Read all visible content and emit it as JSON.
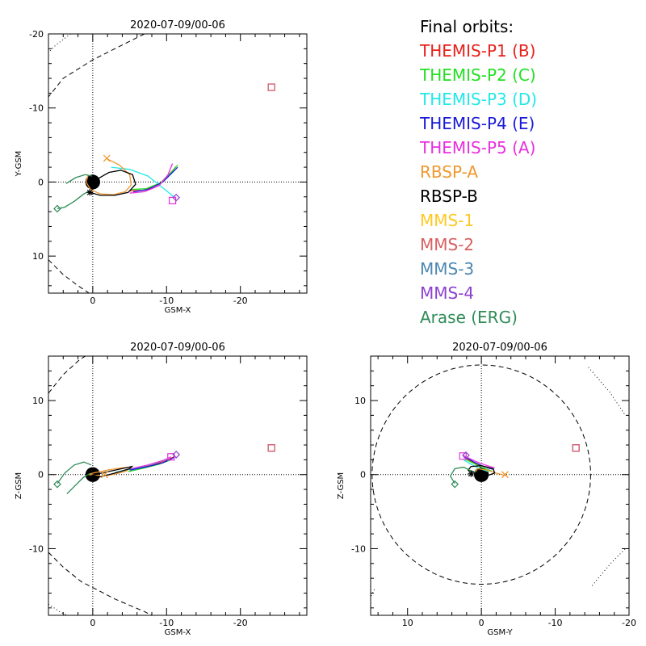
{
  "legend": {
    "title": "Final orbits:",
    "items": [
      {
        "label": "THEMIS-P1 (B)",
        "color": "#e8201a"
      },
      {
        "label": "THEMIS-P2 (C)",
        "color": "#22e022"
      },
      {
        "label": "THEMIS-P3 (D)",
        "color": "#22e8e8"
      },
      {
        "label": "THEMIS-P4 (E)",
        "color": "#1a1ad8"
      },
      {
        "label": "THEMIS-P5 (A)",
        "color": "#e830e0"
      },
      {
        "label": "RBSP-A",
        "color": "#f09830"
      },
      {
        "label": "RBSP-B",
        "color": "#000000"
      },
      {
        "label": "MMS-1",
        "color": "#ffc820"
      },
      {
        "label": "MMS-2",
        "color": "#d86060"
      },
      {
        "label": "MMS-3",
        "color": "#4c88b0"
      },
      {
        "label": "MMS-4",
        "color": "#8c40d0"
      },
      {
        "label": "Arase (ERG)",
        "color": "#2e8b57"
      }
    ]
  },
  "chart_data": [
    {
      "type": "line",
      "title": "2020-07-09/00-06",
      "xlabel": "GSM-X",
      "ylabel": "Y-GSM",
      "xlim": [
        6,
        -29
      ],
      "ylim": [
        15,
        -20
      ],
      "x_ticks": [
        0,
        -10,
        -20
      ],
      "y_ticks": [
        -20,
        -10,
        0,
        10
      ],
      "curves": [
        {
          "kind": "bowshock",
          "style": "dashed",
          "points": [
            [
              -7,
              -20
            ],
            [
              -3,
              -18
            ],
            [
              0,
              -16.5
            ],
            [
              4,
              -14
            ],
            [
              6,
              -11.5
            ],
            [
              6,
              -10.5
            ]
          ]
        },
        {
          "kind": "bowshock",
          "style": "dashed",
          "points": [
            [
              6,
              10.5
            ],
            [
              4,
              12.5
            ],
            [
              2,
              14
            ],
            [
              0.5,
              15
            ]
          ]
        },
        {
          "kind": "magnetopause",
          "style": "dotted",
          "points": [
            [
              3,
              -20
            ],
            [
              5,
              -18.5
            ],
            [
              6,
              -17.5
            ]
          ]
        }
      ],
      "series": [
        {
          "name": "THEMIS-P1 (B)",
          "color": "#e8201a",
          "x": [
            -5,
            -7,
            -9,
            -10.5,
            -11.3
          ],
          "y": [
            1.2,
            1.1,
            0.3,
            -1.2,
            -2.1
          ]
        },
        {
          "name": "THEMIS-P2 (C)",
          "color": "#22e022",
          "x": [
            -5.2,
            -7.2,
            -9.2,
            -10.7,
            -11.5
          ],
          "y": [
            1.0,
            0.9,
            0.1,
            -1.4,
            -2.3
          ]
        },
        {
          "name": "THEMIS-P3 (D)",
          "color": "#22e8e8",
          "x": [
            -2.5,
            -5,
            -7.5,
            -9.5,
            -11
          ],
          "y": [
            -2.0,
            -1.7,
            -0.8,
            0.8,
            2.0
          ]
        },
        {
          "name": "THEMIS-P4 (E)",
          "color": "#1a1ad8",
          "x": [
            -5.5,
            -7.5,
            -9.5,
            -10.8,
            -11.5
          ],
          "y": [
            1.3,
            1.0,
            0.0,
            -1.3,
            -2.0
          ]
        },
        {
          "name": "THEMIS-P5 (A)",
          "color": "#e830e0",
          "x": [
            -5,
            -7,
            -9,
            -10.2,
            -10.8
          ],
          "y": [
            1.5,
            1.3,
            0.5,
            -1.0,
            -2.5
          ]
        },
        {
          "name": "RBSP-A",
          "color": "#f09830",
          "x": [
            -1.8,
            -3.6,
            -5,
            -5.2,
            -4.4,
            -2.8,
            -1,
            0.3,
            0.9,
            0.6
          ],
          "y": [
            -3.2,
            -2.3,
            -1.0,
            0.4,
            1.3,
            1.7,
            1.6,
            1.0,
            0.0,
            -1.0
          ]
        },
        {
          "name": "RBSP-B",
          "color": "#000000",
          "x": [
            0.4,
            -1,
            -3,
            -4.8,
            -5.8,
            -5.4,
            -3.8,
            -2.2,
            -0.6,
            0.4
          ],
          "y": [
            1.4,
            1.8,
            1.8,
            1.4,
            0.3,
            -1.0,
            -1.6,
            -1.3,
            -0.4,
            0.4
          ]
        },
        {
          "name": "Arase (ERG)",
          "color": "#2e8b57",
          "x": [
            4.8,
            3.8,
            2.5,
            1.2,
            0.4
          ],
          "y": [
            3.6,
            3.4,
            2.6,
            1.6,
            1.2
          ]
        },
        {
          "name": "Arase (ERG)",
          "color": "#2e8b57",
          "x": [
            3.6,
            2.3,
            1.0,
            0.1
          ],
          "y": [
            0.2,
            -0.6,
            -1.0,
            -0.8
          ]
        }
      ],
      "markers": [
        {
          "name": "MMS-4",
          "shape": "square",
          "x": -24.2,
          "y": -12.8,
          "color": "#8c40d0"
        },
        {
          "name": "MMS-2",
          "shape": "square",
          "x": -24.2,
          "y": -12.8,
          "color": "#d86060"
        },
        {
          "name": "THEMIS-P5 (A)",
          "shape": "square",
          "x": -10.8,
          "y": 2.5,
          "color": "#e830e0"
        },
        {
          "name": "THEMIS-P4 (E)",
          "shape": "diamond",
          "x": -11.3,
          "y": 2.1,
          "color": "#8c40d0"
        },
        {
          "name": "RBSP-A",
          "shape": "x",
          "x": -1.9,
          "y": -3.2,
          "color": "#f09830"
        },
        {
          "name": "RBSP-B",
          "shape": "asterisk",
          "x": 0.4,
          "y": 1.4,
          "color": "#000000"
        },
        {
          "name": "Arase (ERG)",
          "shape": "diamond",
          "x": 4.8,
          "y": 3.6,
          "color": "#2e8b57"
        }
      ]
    },
    {
      "type": "line",
      "title": "2020-07-09/00-06",
      "xlabel": "GSM-X",
      "ylabel": "Z-GSM",
      "xlim": [
        6,
        -29
      ],
      "ylim": [
        -19,
        16
      ],
      "x_ticks": [
        0,
        -10,
        -20
      ],
      "y_ticks": [
        -10,
        0,
        10
      ],
      "curves": [
        {
          "kind": "bowshock",
          "style": "dashed",
          "points": [
            [
              6,
              11
            ],
            [
              4,
              13.5
            ],
            [
              1.8,
              15.5
            ],
            [
              1,
              16
            ]
          ]
        },
        {
          "kind": "bowshock",
          "style": "dashed",
          "points": [
            [
              6,
              -10.5
            ],
            [
              4,
              -12.5
            ],
            [
              1.5,
              -14.5
            ],
            [
              -0.5,
              -15.5
            ],
            [
              -3,
              -16.8
            ],
            [
              -7,
              -18.5
            ],
            [
              -8,
              -19
            ]
          ]
        },
        {
          "kind": "magnetopause",
          "style": "dotted",
          "points": [
            [
              6,
              -17.5
            ],
            [
              4.5,
              -18.5
            ],
            [
              3.5,
              -19
            ]
          ]
        }
      ],
      "series": [
        {
          "name": "THEMIS-P1 (B)",
          "color": "#e8201a",
          "x": [
            -5,
            -7,
            -9,
            -10.4,
            -11.2
          ],
          "y": [
            0.7,
            1.1,
            1.6,
            2.1,
            2.5
          ]
        },
        {
          "name": "THEMIS-P2 (C)",
          "color": "#22e022",
          "x": [
            -4.8,
            -7,
            -9,
            -10.6
          ],
          "y": [
            0.4,
            0.9,
            1.4,
            2.0
          ]
        },
        {
          "name": "THEMIS-P3 (D)",
          "color": "#22e8e8",
          "x": [
            -3,
            -5.5,
            -8,
            -10.2
          ],
          "y": [
            0.3,
            0.8,
            1.4,
            2.1
          ]
        },
        {
          "name": "THEMIS-P4 (E)",
          "color": "#1a1ad8",
          "x": [
            -5,
            -7.5,
            -9.5,
            -11
          ],
          "y": [
            0.6,
            1.1,
            1.6,
            2.3
          ]
        },
        {
          "name": "THEMIS-P5 (A)",
          "color": "#e830e0",
          "x": [
            -5.2,
            -7.5,
            -9.5,
            -10.6
          ],
          "y": [
            0.8,
            1.3,
            1.9,
            2.4
          ]
        },
        {
          "name": "RBSP-A",
          "color": "#f09830",
          "x": [
            -2,
            -3.2,
            -4.6,
            -5.2,
            -3.8,
            -2,
            0,
            0.6,
            -1
          ],
          "y": [
            -0.1,
            0.1,
            0.5,
            1.0,
            0.9,
            0.6,
            0.2,
            0.0,
            -0.1
          ]
        },
        {
          "name": "RBSP-B",
          "color": "#000000",
          "x": [
            0.6,
            -1,
            -3,
            -5,
            -5.3,
            -3.5,
            -1.2,
            0.4
          ],
          "y": [
            -0.6,
            -0.3,
            0.2,
            0.8,
            1.1,
            0.7,
            0.2,
            -0.2
          ]
        },
        {
          "name": "Arase (ERG)",
          "color": "#2e8b57",
          "x": [
            4.8,
            3.8,
            2.5,
            1.2,
            0.2
          ],
          "y": [
            -1.2,
            0.2,
            1.3,
            1.7,
            1.3
          ]
        },
        {
          "name": "Arase (ERG)",
          "color": "#2e8b57",
          "x": [
            3.5,
            2.5,
            1.3,
            0.3
          ],
          "y": [
            -2.6,
            -1.6,
            -0.4,
            0.2
          ]
        }
      ],
      "markers": [
        {
          "name": "MMS-4",
          "shape": "square",
          "x": -24.2,
          "y": 3.6,
          "color": "#8c40d0"
        },
        {
          "name": "MMS-2",
          "shape": "square",
          "x": -24.2,
          "y": 3.6,
          "color": "#d86060"
        },
        {
          "name": "THEMIS-P5 (A)",
          "shape": "square",
          "x": -10.6,
          "y": 2.4,
          "color": "#e830e0"
        },
        {
          "name": "THEMIS-P4 (E)",
          "shape": "diamond",
          "x": -11.3,
          "y": 2.7,
          "color": "#8c40d0"
        },
        {
          "name": "RBSP-A",
          "shape": "x",
          "x": -1.6,
          "y": 0.0,
          "color": "#f09830"
        },
        {
          "name": "Arase (ERG)",
          "shape": "diamond",
          "x": 4.8,
          "y": -1.3,
          "color": "#2e8b57"
        }
      ]
    },
    {
      "type": "line",
      "title": "2020-07-09/00-06",
      "xlabel": "GSM-Y",
      "ylabel": "Z-GSM",
      "xlim": [
        15,
        -20
      ],
      "ylim": [
        -19,
        16
      ],
      "x_ticks": [
        10,
        0,
        -10,
        -20
      ],
      "y_ticks": [
        -10,
        0,
        10
      ],
      "curves": [
        {
          "kind": "circle",
          "style": "dashed",
          "center": [
            0,
            0
          ],
          "radius": 14.8
        },
        {
          "kind": "magnetopause",
          "style": "dotted",
          "points": [
            [
              -14.5,
              14.5
            ],
            [
              -17.5,
              11
            ],
            [
              -19.5,
              8
            ]
          ]
        },
        {
          "kind": "magnetopause",
          "style": "dotted",
          "points": [
            [
              -15,
              -15
            ],
            [
              -17.5,
              -12
            ],
            [
              -19.5,
              -10
            ]
          ]
        },
        {
          "kind": "magnetopause",
          "style": "dotted",
          "points": [
            [
              14.5,
              -15.5
            ],
            [
              15,
              -16.5
            ]
          ]
        }
      ],
      "series": [
        {
          "name": "THEMIS-P1 (B)",
          "color": "#e8201a",
          "x": [
            -1.2,
            0,
            1,
            2,
            2.4
          ],
          "y": [
            0.8,
            1.2,
            1.6,
            2.1,
            2.4
          ]
        },
        {
          "name": "THEMIS-P2 (C)",
          "color": "#22e022",
          "x": [
            -1.4,
            -0.2,
            1,
            2.2
          ],
          "y": [
            0.5,
            0.9,
            1.5,
            2.1
          ]
        },
        {
          "name": "THEMIS-P3 (D)",
          "color": "#22e8e8",
          "x": [
            -1,
            0.2,
            1.4,
            2.4
          ],
          "y": [
            0.4,
            0.8,
            1.4,
            2.0
          ]
        },
        {
          "name": "THEMIS-P4 (E)",
          "color": "#1a1ad8",
          "x": [
            -1.6,
            -0.3,
            1,
            2.2
          ],
          "y": [
            0.7,
            1.1,
            1.7,
            2.4
          ]
        },
        {
          "name": "THEMIS-P5 (A)",
          "color": "#e830e0",
          "x": [
            -1.8,
            -0.5,
            0.8,
            1.9,
            2.5
          ],
          "y": [
            0.9,
            1.3,
            1.8,
            2.3,
            2.6
          ]
        },
        {
          "name": "RBSP-A",
          "color": "#f09830",
          "x": [
            -3.2,
            -2,
            -0.8,
            0.5,
            0.8
          ],
          "y": [
            -0.1,
            0.2,
            0.6,
            0.8,
            0.4
          ]
        },
        {
          "name": "RBSP-B",
          "color": "#000000",
          "x": [
            0.8,
            1.8,
            1.4,
            0,
            -1.6,
            -1.8,
            -0.6,
            0.8
          ],
          "y": [
            0.2,
            0.6,
            1.1,
            1.2,
            0.8,
            0.2,
            -0.2,
            -0.2
          ]
        },
        {
          "name": "Arase (ERG)",
          "color": "#2e8b57",
          "x": [
            3.6,
            4.2,
            3.6,
            2.4,
            1.6,
            0.8
          ],
          "y": [
            -1.2,
            -0.2,
            0.8,
            1.0,
            0.6,
            0.3
          ]
        }
      ],
      "markers": [
        {
          "name": "MMS-4",
          "shape": "square",
          "x": -12.8,
          "y": 3.6,
          "color": "#8c40d0"
        },
        {
          "name": "MMS-2",
          "shape": "square",
          "x": -12.8,
          "y": 3.6,
          "color": "#d86060"
        },
        {
          "name": "THEMIS-P5 (A)",
          "shape": "square",
          "x": 2.5,
          "y": 2.5,
          "color": "#e830e0"
        },
        {
          "name": "THEMIS-P4 (E)",
          "shape": "diamond",
          "x": 2.1,
          "y": 2.6,
          "color": "#8c40d0"
        },
        {
          "name": "RBSP-A",
          "shape": "x",
          "x": -3.2,
          "y": 0.0,
          "color": "#f09830"
        },
        {
          "name": "RBSP-B",
          "shape": "asterisk",
          "x": 1.4,
          "y": 0.1,
          "color": "#000000"
        },
        {
          "name": "Arase (ERG)",
          "shape": "diamond",
          "x": 3.6,
          "y": -1.3,
          "color": "#2e8b57"
        }
      ]
    }
  ]
}
